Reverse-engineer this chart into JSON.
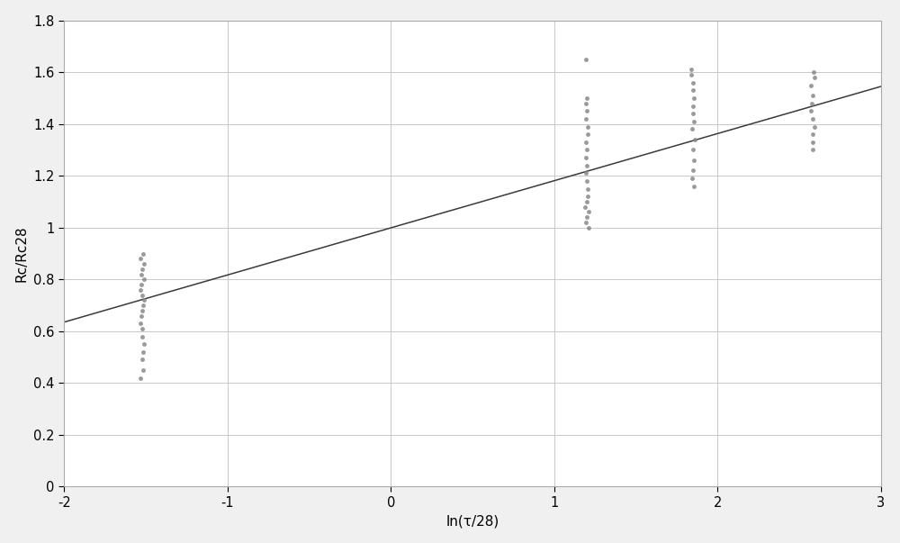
{
  "title": "",
  "xlabel": "ln(τ/28)",
  "ylabel": "Rc/Rc28",
  "xlim": [
    -2,
    3
  ],
  "ylim": [
    0,
    1.8
  ],
  "xticks": [
    -2,
    -1,
    0,
    1,
    2,
    3
  ],
  "yticks": [
    0,
    0.2,
    0.4,
    0.6,
    0.8,
    1.0,
    1.2,
    1.4,
    1.6,
    1.8
  ],
  "scatter_color": "#888888",
  "line_color": "#3a3a3a",
  "bg_color": "#f0f0f0",
  "plot_bg_color": "#ffffff",
  "scatter_clusters": [
    {
      "x": -1.52,
      "y_values": [
        0.42,
        0.45,
        0.49,
        0.52,
        0.55,
        0.58,
        0.61,
        0.63,
        0.66,
        0.68,
        0.7,
        0.72,
        0.74,
        0.76,
        0.78,
        0.8,
        0.82,
        0.84,
        0.86,
        0.88,
        0.9
      ]
    },
    {
      "x": 1.2,
      "y_values": [
        1.0,
        1.02,
        1.04,
        1.06,
        1.08,
        1.1,
        1.12,
        1.15,
        1.18,
        1.21,
        1.24,
        1.27,
        1.3,
        1.33,
        1.36,
        1.39,
        1.42,
        1.45,
        1.48,
        1.5,
        1.65
      ]
    },
    {
      "x": 1.85,
      "y_values": [
        1.16,
        1.19,
        1.22,
        1.26,
        1.3,
        1.34,
        1.38,
        1.41,
        1.44,
        1.47,
        1.5,
        1.53,
        1.56,
        1.59,
        1.61
      ]
    },
    {
      "x": 2.58,
      "y_values": [
        1.3,
        1.33,
        1.36,
        1.39,
        1.42,
        1.45,
        1.48,
        1.51,
        1.55,
        1.58,
        1.6
      ]
    }
  ],
  "line_x": [
    -2.0,
    3.0
  ],
  "line_y": [
    0.635,
    1.545
  ],
  "marker_size": 3.5,
  "grid_color": "#c8c8c8",
  "grid_linestyle": "-",
  "grid_linewidth": 0.7,
  "border_color": "#aaaaaa"
}
